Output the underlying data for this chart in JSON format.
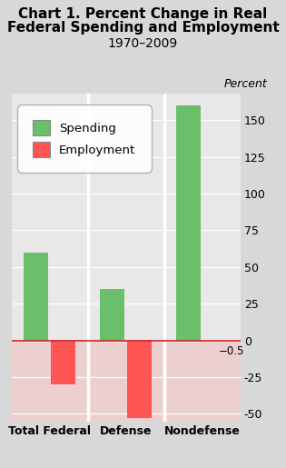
{
  "title_line1": "Chart 1. Percent Change in Real",
  "title_line2": "Federal Spending and Employment",
  "subtitle": "1970–2009",
  "ylabel": "Percent",
  "categories": [
    "Total Federal",
    "Defense",
    "Nondefense"
  ],
  "spending": [
    60,
    35,
    160
  ],
  "employment": [
    -30,
    -53,
    -0.5
  ],
  "spending_color": "#6abf6a",
  "employment_color": "#ff5555",
  "bar_width": 0.32,
  "ylim": [
    -55,
    168
  ],
  "yticks": [
    -50,
    -25,
    0,
    25,
    50,
    75,
    100,
    125,
    150
  ],
  "annotation_text": "−0.5",
  "legend_spending": "Spending",
  "legend_employment": "Employment",
  "fig_bg_color": "#d8d8d8",
  "plot_bg_pos": "#e8e8e8",
  "plot_bg_neg": "#ecd0d0",
  "title_fontsize": 11,
  "subtitle_fontsize": 10,
  "tick_fontsize": 9,
  "label_fontsize": 9,
  "zero_line_color": "#cc2222"
}
